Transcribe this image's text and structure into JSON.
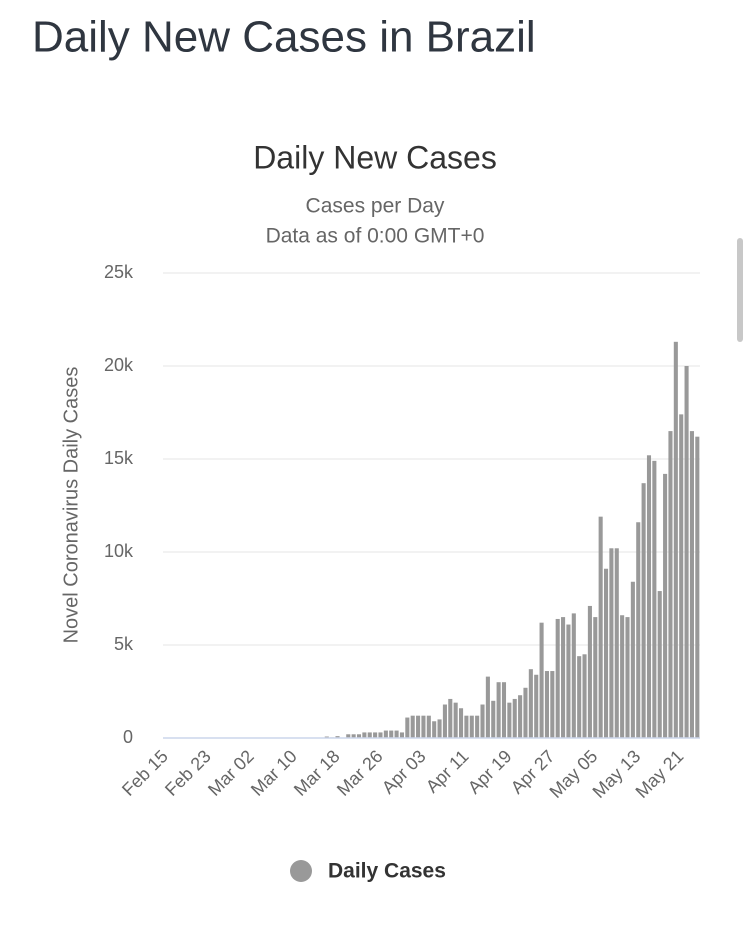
{
  "page_title": "Daily New Cases in Brazil",
  "chart_data": {
    "type": "bar",
    "title": "Daily New Cases",
    "subtitle": [
      "Cases per Day",
      "Data as of 0:00 GMT+0"
    ],
    "y_label": "Novel Coronavirus Daily Cases",
    "categories": [
      "Feb 15",
      null,
      null,
      null,
      null,
      null,
      null,
      null,
      "Feb 23",
      null,
      null,
      null,
      null,
      null,
      null,
      null,
      "Mar 02",
      null,
      null,
      null,
      null,
      null,
      null,
      null,
      "Mar 10",
      null,
      null,
      null,
      null,
      null,
      null,
      null,
      "Mar 18",
      null,
      null,
      null,
      null,
      null,
      null,
      null,
      "Mar 26",
      null,
      null,
      null,
      null,
      null,
      null,
      null,
      "Apr 03",
      null,
      null,
      null,
      null,
      null,
      null,
      null,
      "Apr 11",
      null,
      null,
      null,
      null,
      null,
      null,
      null,
      "Apr 19",
      null,
      null,
      null,
      null,
      null,
      null,
      null,
      "Apr 27",
      null,
      null,
      null,
      null,
      null,
      null,
      null,
      "May 05",
      null,
      null,
      null,
      null,
      null,
      null,
      null,
      "May 13",
      null,
      null,
      null,
      null,
      null,
      null,
      null,
      "May 21",
      null,
      null,
      null
    ],
    "series": [
      {
        "name": "Daily Cases",
        "color": "#999999",
        "values": [
          0,
          0,
          0,
          0,
          0,
          0,
          0,
          0,
          0,
          0,
          0,
          1,
          0,
          0,
          0,
          1,
          0,
          0,
          1,
          4,
          6,
          6,
          0,
          6,
          19,
          0,
          13,
          25,
          21,
          23,
          79,
          34,
          100,
          0,
          200,
          200,
          200,
          300,
          300,
          300,
          300,
          400,
          400,
          400,
          300,
          1100,
          1200,
          1200,
          1200,
          1200,
          900,
          1000,
          1800,
          2100,
          1900,
          1600,
          1200,
          1200,
          1200,
          1800,
          3300,
          2000,
          3000,
          3000,
          1900,
          2100,
          2300,
          2700,
          3700,
          3400,
          6200,
          3600,
          3600,
          6400,
          6500,
          6100,
          6700,
          4400,
          4500,
          7100,
          6500,
          11900,
          9100,
          10200,
          10200,
          6600,
          6500,
          8400,
          11600,
          13700,
          15200,
          14900,
          7900,
          14200,
          16500,
          21300,
          17400,
          20000,
          16500,
          16200
        ]
      }
    ],
    "ylim": [
      0,
      25000
    ],
    "yticks": [
      0,
      {
        "value": 5000,
        "label": "5k"
      },
      {
        "value": 10000,
        "label": "10k"
      },
      {
        "value": 15000,
        "label": "15k"
      },
      {
        "value": 20000,
        "label": "20k"
      },
      {
        "value": 25000,
        "label": "25k"
      }
    ],
    "grid": true
  }
}
